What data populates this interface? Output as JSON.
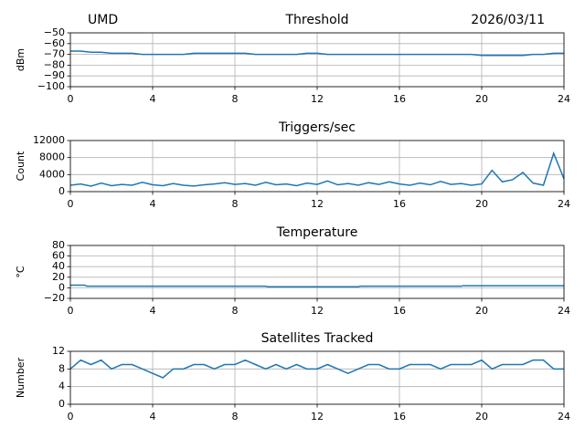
{
  "chart_data": [
    {
      "type": "line",
      "title": "Threshold",
      "left_title": "UMD",
      "right_title": "2026/03/11",
      "ylabel": "dBm",
      "grid": true,
      "color": "#1f77b4",
      "xlim": [
        0,
        24
      ],
      "xticks": [
        0,
        4,
        8,
        12,
        16,
        20,
        24
      ],
      "ylim": [
        -100,
        -50
      ],
      "yticks": [
        {
          "value": -50,
          "label": "−50"
        },
        {
          "value": -60,
          "label": "−60"
        },
        {
          "value": -70,
          "label": "−70"
        },
        {
          "value": -80,
          "label": "−80"
        },
        {
          "value": -90,
          "label": "−90"
        },
        {
          "value": -100,
          "label": "−100"
        }
      ],
      "x": [
        0,
        0.5,
        1,
        1.5,
        2,
        2.5,
        3,
        3.5,
        4,
        4.5,
        5,
        5.5,
        6,
        6.5,
        7,
        7.5,
        8,
        8.5,
        9,
        9.5,
        10,
        10.5,
        11,
        11.5,
        12,
        12.5,
        13,
        13.5,
        14,
        14.5,
        15,
        15.5,
        16,
        16.5,
        17,
        17.5,
        18,
        18.5,
        19,
        19.5,
        20,
        20.5,
        21,
        21.5,
        22,
        22.5,
        23,
        23.5,
        24
      ],
      "values": [
        -67,
        -67,
        -68,
        -68,
        -69,
        -69,
        -69,
        -70,
        -70,
        -70,
        -70,
        -70,
        -69,
        -69,
        -69,
        -69,
        -69,
        -69,
        -70,
        -70,
        -70,
        -70,
        -70,
        -69,
        -69,
        -70,
        -70,
        -70,
        -70,
        -70,
        -70,
        -70,
        -70,
        -70,
        -70,
        -70,
        -70,
        -70,
        -70,
        -70,
        -71,
        -71,
        -71,
        -71,
        -71,
        -70,
        -70,
        -69,
        -69
      ]
    },
    {
      "type": "line",
      "title": "Triggers/sec",
      "ylabel": "Count",
      "grid": true,
      "color": "#1f77b4",
      "xlim": [
        0,
        24
      ],
      "xticks": [
        0,
        4,
        8,
        12,
        16,
        20,
        24
      ],
      "ylim": [
        0,
        12000
      ],
      "yticks": [
        0,
        4000,
        8000,
        12000
      ],
      "x": [
        0,
        0.5,
        1,
        1.5,
        2,
        2.5,
        3,
        3.5,
        4,
        4.5,
        5,
        5.5,
        6,
        6.5,
        7,
        7.5,
        8,
        8.5,
        9,
        9.5,
        10,
        10.5,
        11,
        11.5,
        12,
        12.5,
        13,
        13.5,
        14,
        14.5,
        15,
        15.5,
        16,
        16.5,
        17,
        17.5,
        18,
        18.5,
        19,
        19.5,
        20,
        20.5,
        21,
        21.5,
        22,
        22.5,
        23,
        23.5,
        24
      ],
      "values": [
        1500,
        1800,
        1300,
        2000,
        1400,
        1700,
        1500,
        2200,
        1600,
        1400,
        1900,
        1500,
        1300,
        1600,
        1800,
        2100,
        1700,
        1900,
        1500,
        2200,
        1600,
        1800,
        1400,
        2000,
        1700,
        2500,
        1600,
        1900,
        1500,
        2100,
        1700,
        2300,
        1800,
        1500,
        2000,
        1600,
        2400,
        1700,
        1900,
        1500,
        1800,
        5000,
        2300,
        2800,
        4500,
        2000,
        1500,
        9000,
        3000
      ]
    },
    {
      "type": "line",
      "title": "Temperature",
      "ylabel": "°C",
      "grid": true,
      "color": "#1f77b4",
      "xlim": [
        0,
        24
      ],
      "xticks": [
        0,
        4,
        8,
        12,
        16,
        20,
        24
      ],
      "ylim": [
        -20,
        80
      ],
      "yticks": [
        {
          "value": -20,
          "label": "−20"
        },
        0,
        20,
        40,
        60,
        80
      ],
      "x": [
        0,
        0.7,
        0.8,
        9.5,
        9.6,
        14,
        14.1,
        19,
        19.1,
        24
      ],
      "values": [
        5,
        5,
        3,
        3,
        2,
        2,
        3,
        3,
        4,
        4
      ]
    },
    {
      "type": "line",
      "title": "Satellites Tracked",
      "ylabel": "Number",
      "grid": true,
      "color": "#1f77b4",
      "xlim": [
        0,
        24
      ],
      "xticks": [
        0,
        4,
        8,
        12,
        16,
        20,
        24
      ],
      "ylim": [
        0,
        12
      ],
      "yticks": [
        0,
        4,
        8,
        12
      ],
      "x": [
        0,
        0.5,
        1,
        1.5,
        2,
        2.5,
        3,
        3.5,
        4,
        4.5,
        5,
        5.5,
        6,
        6.5,
        7,
        7.5,
        8,
        8.5,
        9,
        9.5,
        10,
        10.5,
        11,
        11.5,
        12,
        12.5,
        13,
        13.5,
        14,
        14.5,
        15,
        15.5,
        16,
        16.5,
        17,
        17.5,
        18,
        18.5,
        19,
        19.5,
        20,
        20.5,
        21,
        21.5,
        22,
        22.5,
        23,
        23.5,
        24
      ],
      "values": [
        8,
        10,
        9,
        10,
        8,
        9,
        9,
        8,
        7,
        6,
        8,
        8,
        9,
        9,
        8,
        9,
        9,
        10,
        9,
        8,
        9,
        8,
        9,
        8,
        8,
        9,
        8,
        7,
        8,
        9,
        9,
        8,
        8,
        9,
        9,
        9,
        8,
        9,
        9,
        9,
        10,
        8,
        9,
        9,
        9,
        10,
        10,
        8,
        8
      ]
    }
  ]
}
